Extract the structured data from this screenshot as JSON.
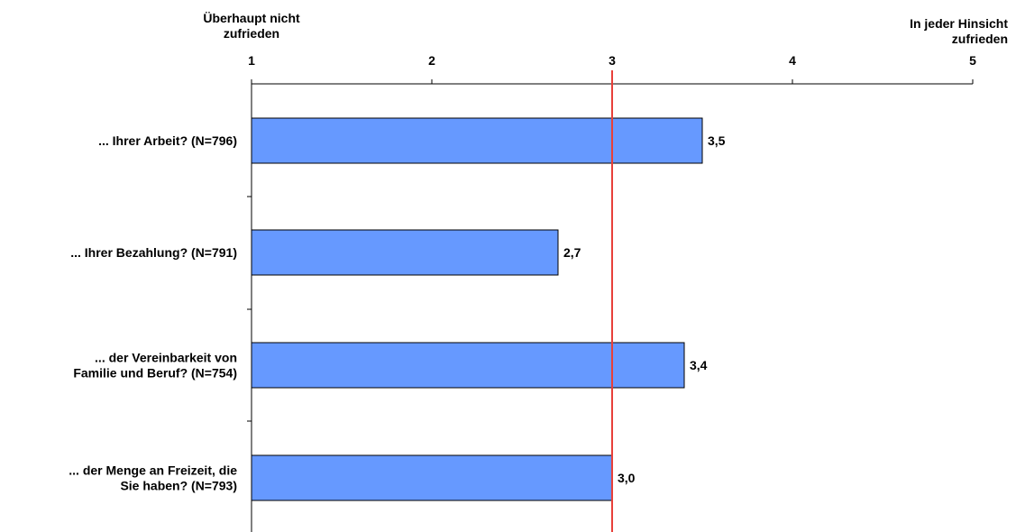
{
  "chart_data": {
    "type": "bar",
    "orientation": "horizontal",
    "categories": [
      [
        "... Ihrer Arbeit? (N=796)"
      ],
      [
        "... Ihrer Bezahlung? (N=791)"
      ],
      [
        "... der Vereinbarkeit von",
        "Familie und Beruf? (N=754)"
      ],
      [
        "... der Menge an Freizeit, die",
        "Sie haben? (N=793)"
      ]
    ],
    "values": [
      3.5,
      2.7,
      3.4,
      3.0
    ],
    "value_labels": [
      "3,5",
      "2,7",
      "3,4",
      "3,0"
    ],
    "xlim": [
      1,
      5
    ],
    "x_ticks": [
      1,
      2,
      3,
      4,
      5
    ],
    "x_tick_labels": [
      "1",
      "2",
      "3",
      "4",
      "5"
    ],
    "scale_min_label": [
      "Überhaupt nicht",
      "zufrieden"
    ],
    "scale_max_label": [
      "In jeder Hinsicht",
      "zufrieden"
    ],
    "reference_line": 3,
    "axis_position": "top",
    "grid": false,
    "colors": {
      "bar_fill": "#6699ff",
      "bar_stroke": "#000000",
      "reference_line": "#e8403a",
      "axis": "#000000"
    }
  }
}
